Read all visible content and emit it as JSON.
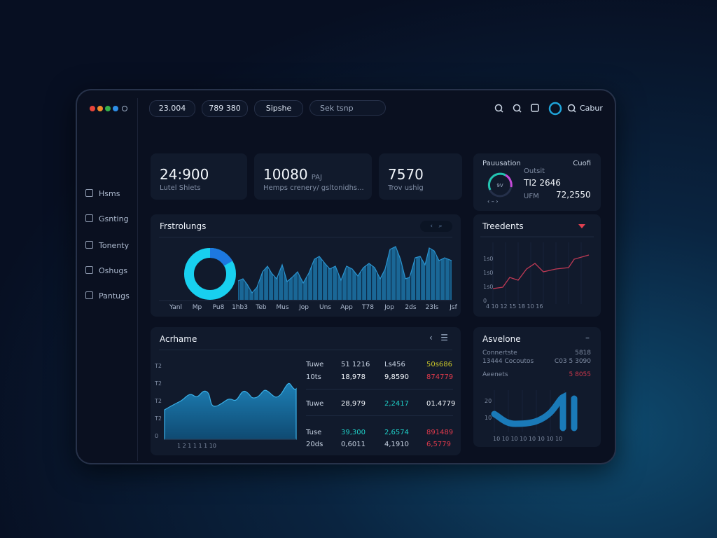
{
  "topbar": {
    "pills": [
      "23.004",
      "789 380",
      "Sipshe"
    ],
    "search": "Sek tsnp",
    "user": "Cabur"
  },
  "sidebar": {
    "items": [
      "Hsms",
      "Gsnting",
      "Tonenty",
      "Oshugs",
      "Pantugs"
    ]
  },
  "stats": [
    {
      "value": "24:900",
      "label": "Lutel Shiets"
    },
    {
      "value": "10080",
      "unit": "PAJ",
      "label": "Hemps crenery/ gsltonidhs..."
    },
    {
      "value": "7570",
      "label": "Trov ushig"
    }
  ],
  "gauge_card": {
    "title": "Pauusation",
    "action": "Cuofi",
    "gauge_label": "9V",
    "rows": [
      {
        "label": "Outsit",
        "value": ""
      },
      {
        "label": "",
        "value": "TI2 2646"
      },
      {
        "label": "UFM",
        "value": "72,2550"
      }
    ]
  },
  "bar_panel": {
    "title": "Frstrolungs",
    "x_labels": [
      "Yanl",
      "Mp",
      "Pu8",
      "1hb3",
      "Teb",
      "Mus",
      "Jop",
      "Uns",
      "App",
      "T78",
      "Jop",
      "2ds",
      "23ls",
      "Jsf"
    ]
  },
  "trend_panel": {
    "title": "Treedents",
    "y_labels": [
      "1s0",
      "1s0",
      "1s0",
      "0"
    ]
  },
  "table_panel": {
    "title": "Acrhame",
    "y_labels": [
      "T2",
      "T2",
      "T2",
      "T2",
      "0"
    ],
    "rows": [
      [
        "Tuwe",
        "51 1216",
        "Ls456",
        "50s686"
      ],
      [
        "10ts",
        "18,978",
        "9,8590",
        "874779"
      ],
      [
        "Tuwe",
        "28,979",
        "2,2417",
        "01.4779"
      ],
      [
        "Tuse",
        "39,300",
        "2,6574",
        "891489"
      ],
      [
        "20ds",
        "0,6011",
        "4,1910",
        "6,5779"
      ]
    ]
  },
  "side_panel": {
    "title": "Asvelone",
    "rows": [
      [
        "Connertste",
        "5818"
      ],
      [
        "13444 Cocoutos",
        "C03 5 3090"
      ],
      [
        "Aeenets",
        "5 8055"
      ]
    ]
  }
}
